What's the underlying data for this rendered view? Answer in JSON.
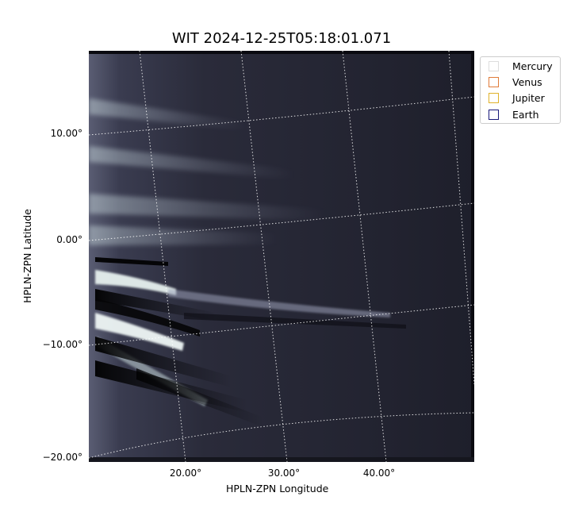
{
  "title": "WIT 2024-12-25T05:18:01.071",
  "xlabel": "HPLN-ZPN Longitude",
  "ylabel": "HPLN-ZPN Latitude",
  "y_ticks": [
    "10.00°",
    "0.00°",
    "−10.00°",
    "−20.00°"
  ],
  "x_ticks": [
    "20.00°",
    "30.00°",
    "40.00°"
  ],
  "legend": [
    {
      "name": "Mercury",
      "color": "#dddddd"
    },
    {
      "name": "Venus",
      "color": "#e07b39"
    },
    {
      "name": "Jupiter",
      "color": "#e0b22a"
    },
    {
      "name": "Earth",
      "color": "#1a1a7a"
    }
  ],
  "image": {
    "colormap": "bone",
    "grid": "dotted white"
  }
}
